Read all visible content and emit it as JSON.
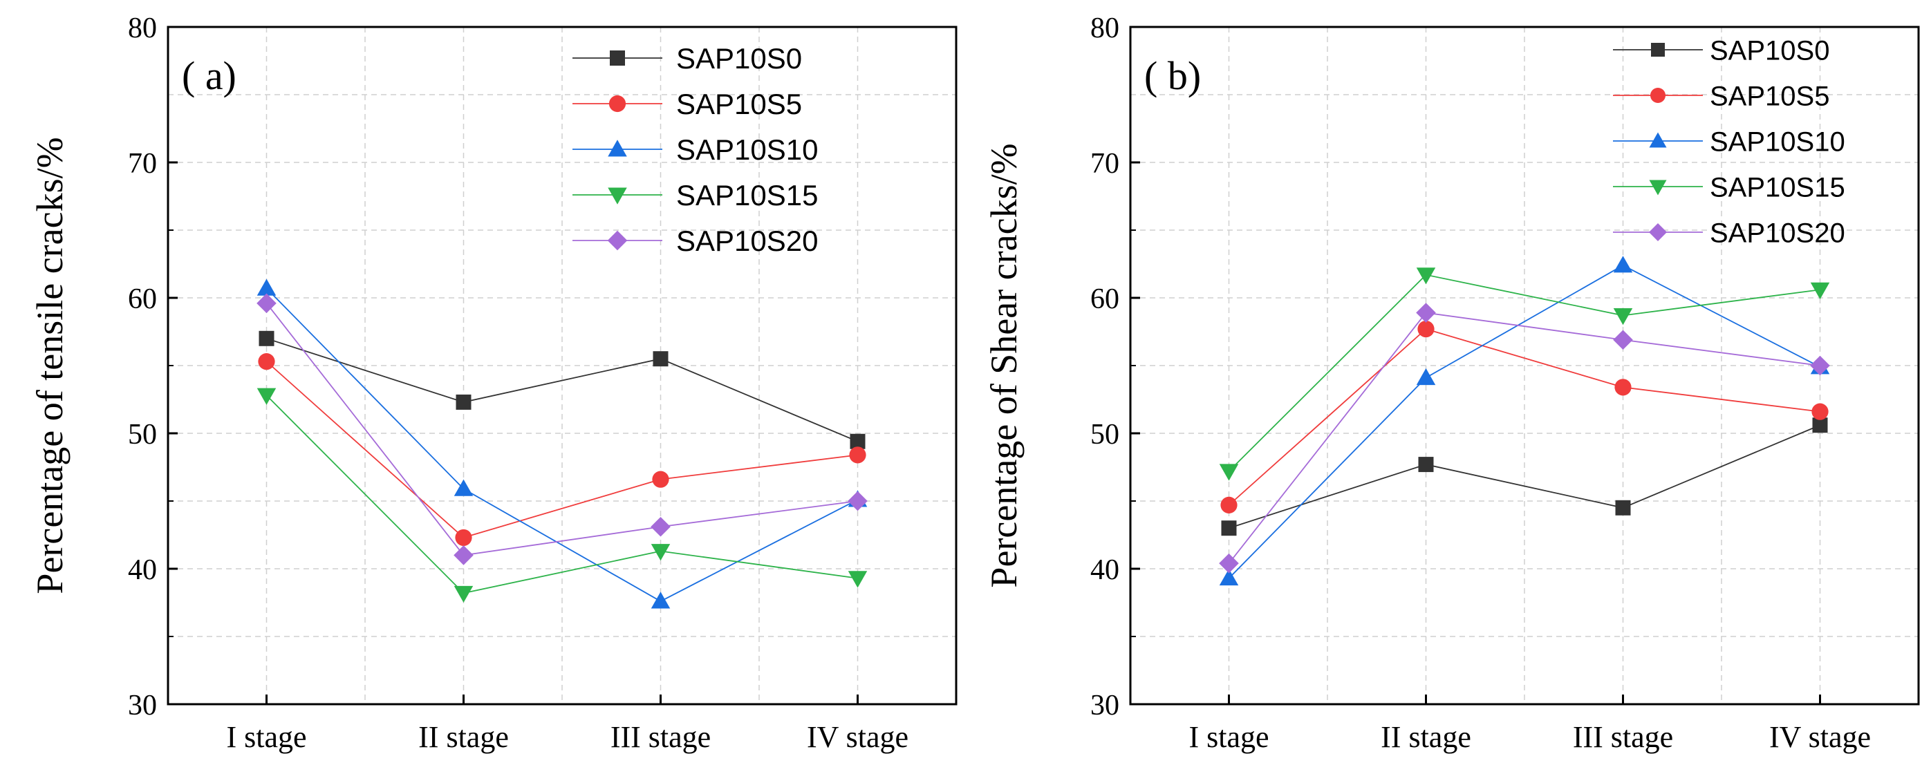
{
  "chart_data": [
    {
      "type": "line",
      "panel_label": "( a)",
      "title": "",
      "xlabel": "",
      "ylabel": "Percentage of tensile cracks/%",
      "categories": [
        "I stage",
        "II stage",
        "III stage",
        "IV stage"
      ],
      "ylim": [
        30,
        80
      ],
      "yticks": [
        "30",
        "40",
        "50",
        "60",
        "70",
        "80"
      ],
      "grid": true,
      "legend_position": "top-right",
      "series": [
        {
          "name": "SAP10S0",
          "marker": "square",
          "color": "#333333",
          "values": [
            57.0,
            52.3,
            55.5,
            49.4
          ]
        },
        {
          "name": "SAP10S5",
          "marker": "circle",
          "color": "#f03c3c",
          "values": [
            55.3,
            42.3,
            46.6,
            48.4
          ]
        },
        {
          "name": "SAP10S10",
          "marker": "triangle-up",
          "color": "#1a6fe0",
          "values": [
            60.7,
            45.9,
            37.6,
            45.1
          ]
        },
        {
          "name": "SAP10S15",
          "marker": "triangle-down",
          "color": "#2db34a",
          "values": [
            52.8,
            38.2,
            41.3,
            39.3
          ]
        },
        {
          "name": "SAP10S20",
          "marker": "diamond",
          "color": "#a56bd8",
          "values": [
            59.6,
            41.0,
            43.1,
            45.0
          ]
        }
      ]
    },
    {
      "type": "line",
      "panel_label": "( b)",
      "title": "",
      "xlabel": "",
      "ylabel": "Percentage of Shear cracks/%",
      "categories": [
        "I stage",
        "II stage",
        "III stage",
        "IV stage"
      ],
      "ylim": [
        30,
        80
      ],
      "yticks": [
        "30",
        "40",
        "50",
        "60",
        "70",
        "80"
      ],
      "grid": true,
      "legend_position": "top-right",
      "series": [
        {
          "name": "SAP10S0",
          "marker": "square",
          "color": "#333333",
          "values": [
            43.0,
            47.7,
            44.5,
            50.6
          ]
        },
        {
          "name": "SAP10S5",
          "marker": "circle",
          "color": "#f03c3c",
          "values": [
            44.7,
            57.7,
            53.4,
            51.6
          ]
        },
        {
          "name": "SAP10S10",
          "marker": "triangle-up",
          "color": "#1a6fe0",
          "values": [
            39.3,
            54.1,
            62.4,
            54.9
          ]
        },
        {
          "name": "SAP10S15",
          "marker": "triangle-down",
          "color": "#2db34a",
          "values": [
            47.2,
            61.7,
            58.7,
            60.6
          ]
        },
        {
          "name": "SAP10S20",
          "marker": "diamond",
          "color": "#a56bd8",
          "values": [
            40.4,
            58.9,
            56.9,
            55.0
          ]
        }
      ]
    }
  ]
}
